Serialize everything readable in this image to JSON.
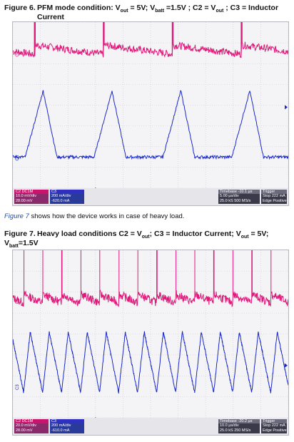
{
  "figure6": {
    "number": "Figure 6.",
    "title_line1": "PFM mode condition: V",
    "title_line1_parts": [
      "PFM mode condition: V",
      "out",
      " = 5V; V",
      "batt",
      " =1.5V ; C2 = V",
      "out",
      " ; C3 = Inductor"
    ],
    "title_line2": "Current",
    "status": {
      "ch2": {
        "label": "C2",
        "extra": "DC1M",
        "div": "10.0 mV/div",
        "offset": "28.00 mV"
      },
      "ch3": {
        "label": "C3",
        "div": "200 mA/div",
        "offset": "-620.0 mA"
      },
      "timebase": {
        "label": "Timebase",
        "value": "-10.1 µs",
        "div": "5.00 µs/div",
        "samples": "25.0 kS",
        "rate": "500 MS/s"
      },
      "trigger": {
        "label": "Trigger",
        "mode": "Stop",
        "level": "222 mA",
        "type": "Edge",
        "slope": "Positive"
      }
    }
  },
  "body_text": {
    "xref": "Figure 7",
    "rest": " shows how the device works in case of heavy load."
  },
  "figure7": {
    "number": "Figure 7.",
    "title_parts": [
      "Heavy load conditions C2 = V",
      "out",
      "; C3 = Inductor Current; V",
      "out",
      " = 5V;"
    ],
    "title_line2_parts": [
      "V",
      "batt",
      "=1.5V"
    ],
    "status": {
      "ch2": {
        "label": "C2",
        "extra": "DC1M",
        "div": "20.0 mV/div",
        "offset": "28.00 mV"
      },
      "ch3": {
        "label": "C3",
        "div": "200 mA/div",
        "offset": "-610.0 mA"
      },
      "timebase": {
        "label": "Timebase",
        "value": "-20.2 µs",
        "div": "10.0 µs/div",
        "samples": "25.0 kS",
        "rate": "250 MS/s"
      },
      "trigger": {
        "label": "Trigger",
        "mode": "Stop",
        "level": "222 mA",
        "type": "Edge",
        "slope": "Positive"
      }
    }
  },
  "colors": {
    "ch2": "#e0187a",
    "ch3": "#1a28c8",
    "grid": "#c9c9d2",
    "background": "#f4f4f6"
  },
  "chart_data": [
    {
      "type": "line",
      "x_units": "divisions",
      "xlim": [
        0,
        10
      ],
      "ylim": [
        -4,
        4
      ],
      "grid": true,
      "series": [
        {
          "name": "C2",
          "description": "Vout ripple: sawtooth with sharp spike at each switching event",
          "spike_x": [
            0.8,
            3.3,
            5.8,
            8.3
          ],
          "spike_peak_y": 3.4,
          "baseline_y": 2.5
        },
        {
          "name": "C3",
          "description": "Inductor current: triangular pulses then zero",
          "peak_x": [
            1.1,
            3.6,
            6.1,
            8.6
          ],
          "peak_y": 0.7,
          "zero_y": -2.5
        }
      ]
    },
    {
      "type": "line",
      "x_units": "divisions",
      "xlim": [
        0,
        10
      ],
      "ylim": [
        -4,
        4
      ],
      "grid": true,
      "series": [
        {
          "name": "C2",
          "description": "Vout ripple under heavy load, spike every period",
          "period_div": 0.69,
          "spike_peak_y": 3.2,
          "baseline_y": 1.6
        },
        {
          "name": "C3",
          "description": "Continuous triangular inductor current",
          "period_div": 0.69,
          "peak_y": 0.1,
          "trough_y": -2.8
        }
      ]
    }
  ]
}
